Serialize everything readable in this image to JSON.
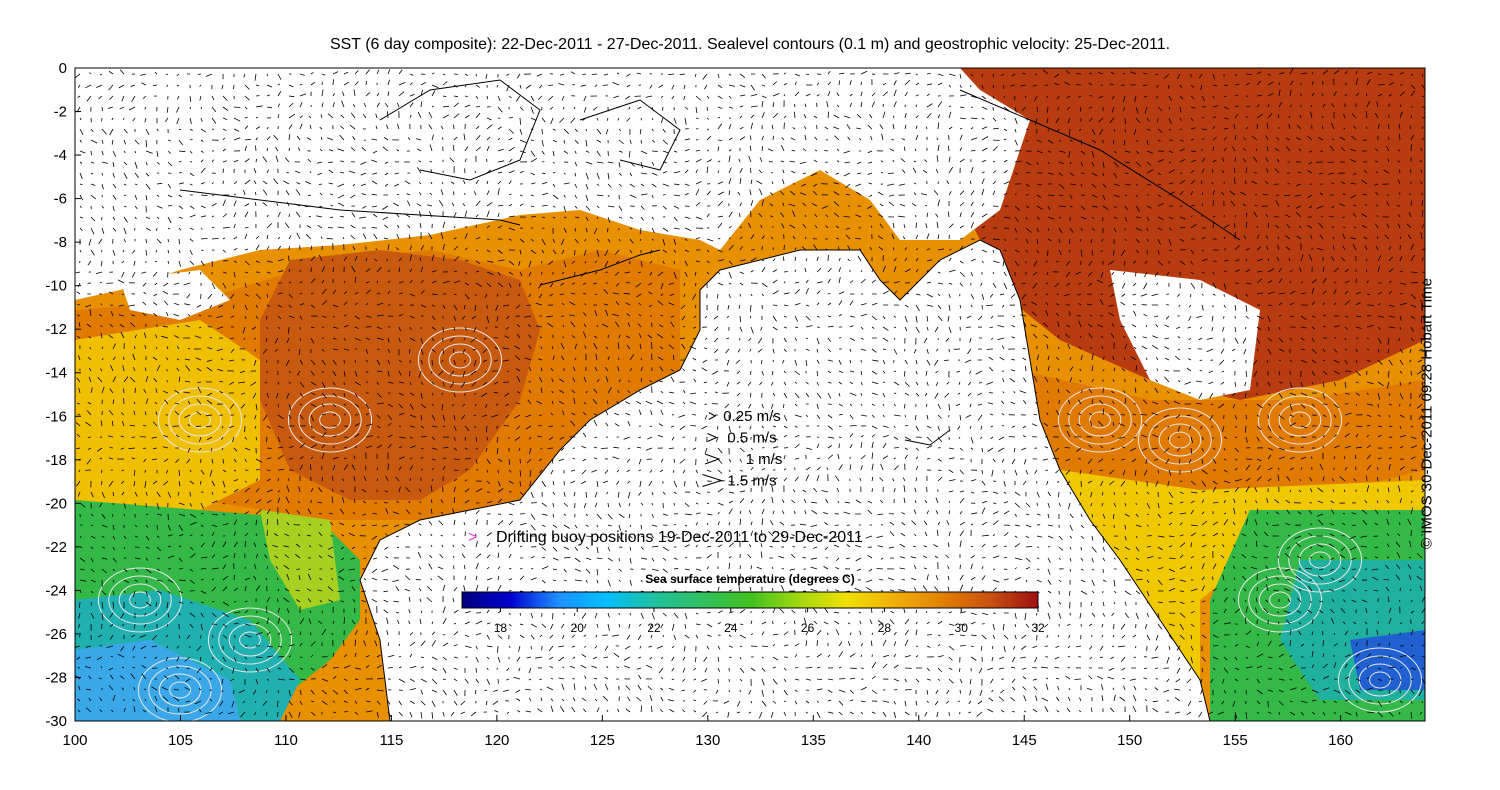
{
  "title": "SST (6 day composite): 22-Dec-2011 - 27-Dec-2011. Sealevel contours (0.1 m) and geostrophic velocity: 25-Dec-2011.",
  "credit": "© IMOS 30-Dec-2011 09:28 Hobart Time",
  "axes": {
    "x_ticks": [
      "100",
      "105",
      "110",
      "115",
      "120",
      "125",
      "130",
      "135",
      "140",
      "145",
      "150",
      "155",
      "160"
    ],
    "y_ticks": [
      "0",
      "-2",
      "-4",
      "-6",
      "-8",
      "-10",
      "-12",
      "-14",
      "-16",
      "-18",
      "-20",
      "-22",
      "-24",
      "-26",
      "-28",
      "-30"
    ],
    "xlim": [
      100,
      164
    ],
    "ylim": [
      -30,
      0
    ]
  },
  "velocity_legend": [
    {
      "label": "0.25 m/s",
      "speed": 0.25
    },
    {
      "label": "0.5 m/s",
      "speed": 0.5
    },
    {
      "label": "1 m/s",
      "speed": 1
    },
    {
      "label": "1.5 m/s",
      "speed": 1.5
    }
  ],
  "buoy_legend": {
    "label": "Drifting buoy positions 19-Dec-2011 to 29-Dec-2011",
    "color": "#e040e0"
  },
  "colorbar": {
    "title": "Sea surface temperature (degrees C)",
    "ticks": [
      "18",
      "20",
      "22",
      "24",
      "26",
      "28",
      "30",
      "32"
    ],
    "range": [
      17,
      32
    ],
    "colors": [
      "#000080",
      "#0000cd",
      "#1e90ff",
      "#00bfff",
      "#20c0a0",
      "#30c060",
      "#40c020",
      "#a0d810",
      "#f0e000",
      "#f0b000",
      "#e08000",
      "#c85010",
      "#a01010"
    ]
  },
  "colors": {
    "land": "#ffffff",
    "cloud_gap": "#ffffff",
    "coast": "#000000",
    "contour": "#e8e8e8",
    "arrow": "#000000"
  }
}
